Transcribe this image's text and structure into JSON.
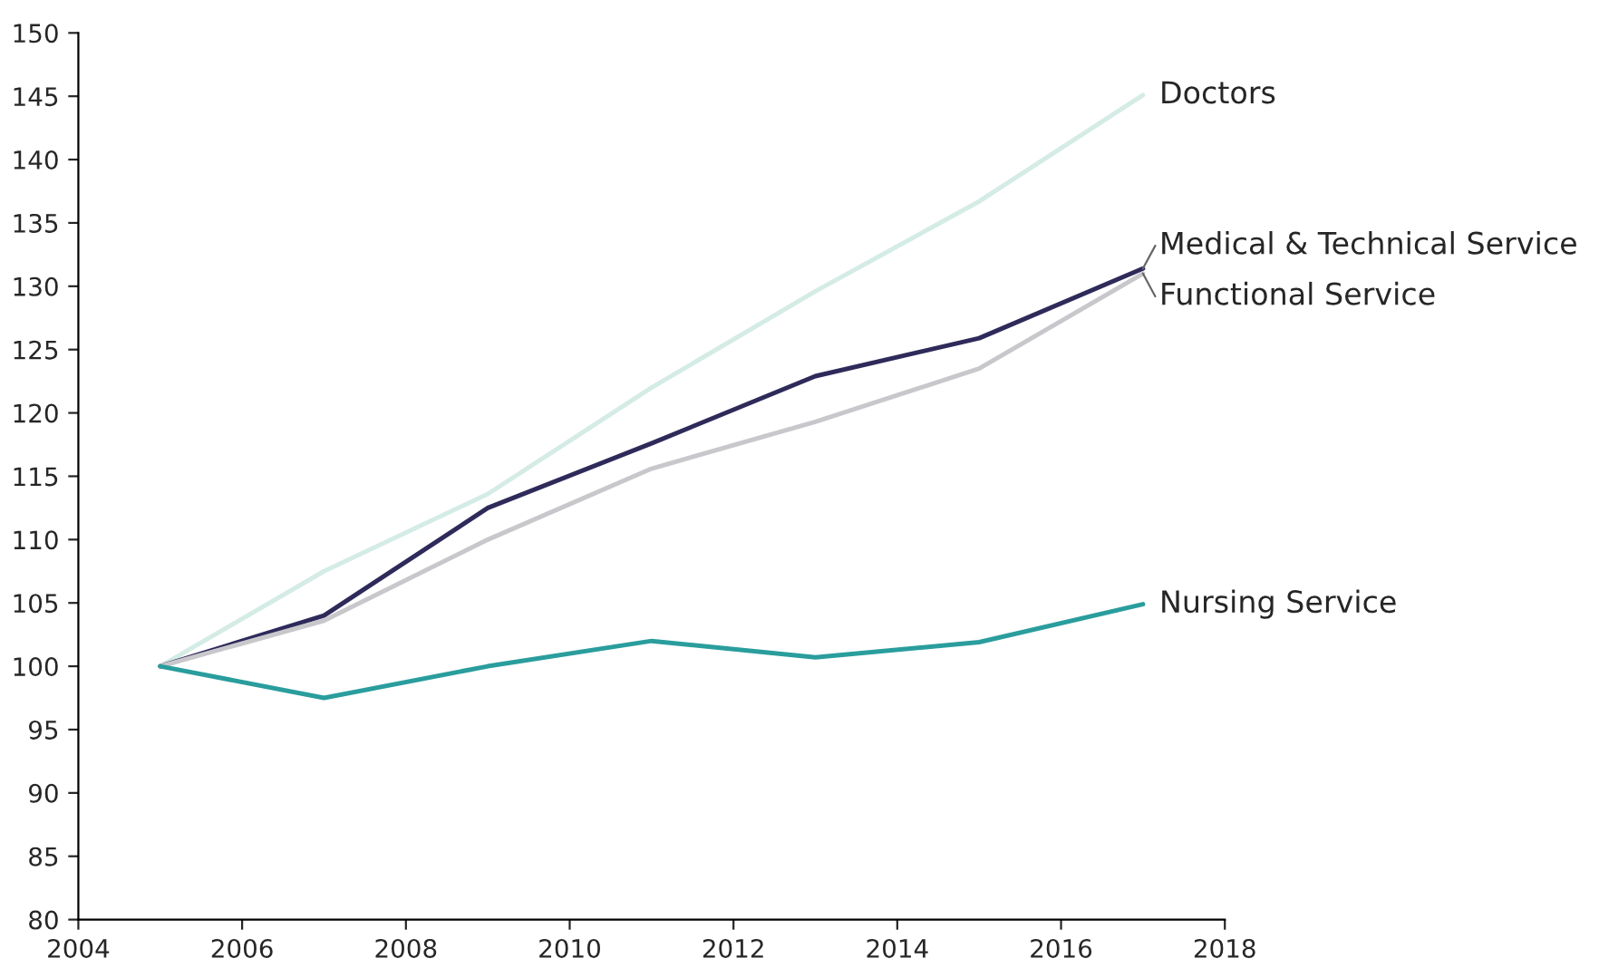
{
  "chart_data": {
    "type": "line",
    "x": [
      2005,
      2007,
      2009,
      2011,
      2013,
      2015,
      2017
    ],
    "series": [
      {
        "name": "Doctors",
        "color": "#d5ece6",
        "values": [
          100,
          107.5,
          113.6,
          122,
          129.6,
          136.7,
          145.1
        ]
      },
      {
        "name": "Medical & Technical Service",
        "color": "#2e2a5a",
        "values": [
          100,
          104,
          112.5,
          117.6,
          122.9,
          125.9,
          131.4
        ]
      },
      {
        "name": "Functional Service",
        "color": "#c8c8cc",
        "values": [
          100,
          103.6,
          110,
          115.6,
          119.3,
          123.5,
          131
        ]
      },
      {
        "name": "Nursing Service",
        "color": "#2a9d9d",
        "values": [
          100,
          97.5,
          100,
          102,
          100.7,
          101.9,
          104.9
        ]
      }
    ],
    "xlim": [
      2004,
      2018
    ],
    "xticks": [
      2004,
      2006,
      2008,
      2010,
      2012,
      2014,
      2016,
      2018
    ],
    "ylim": [
      80,
      150
    ],
    "yticks": [
      80,
      85,
      90,
      95,
      100,
      105,
      110,
      115,
      120,
      125,
      130,
      135,
      140,
      145,
      150
    ],
    "grid": false,
    "legend": false,
    "marker": "none",
    "line_style": "solid"
  }
}
